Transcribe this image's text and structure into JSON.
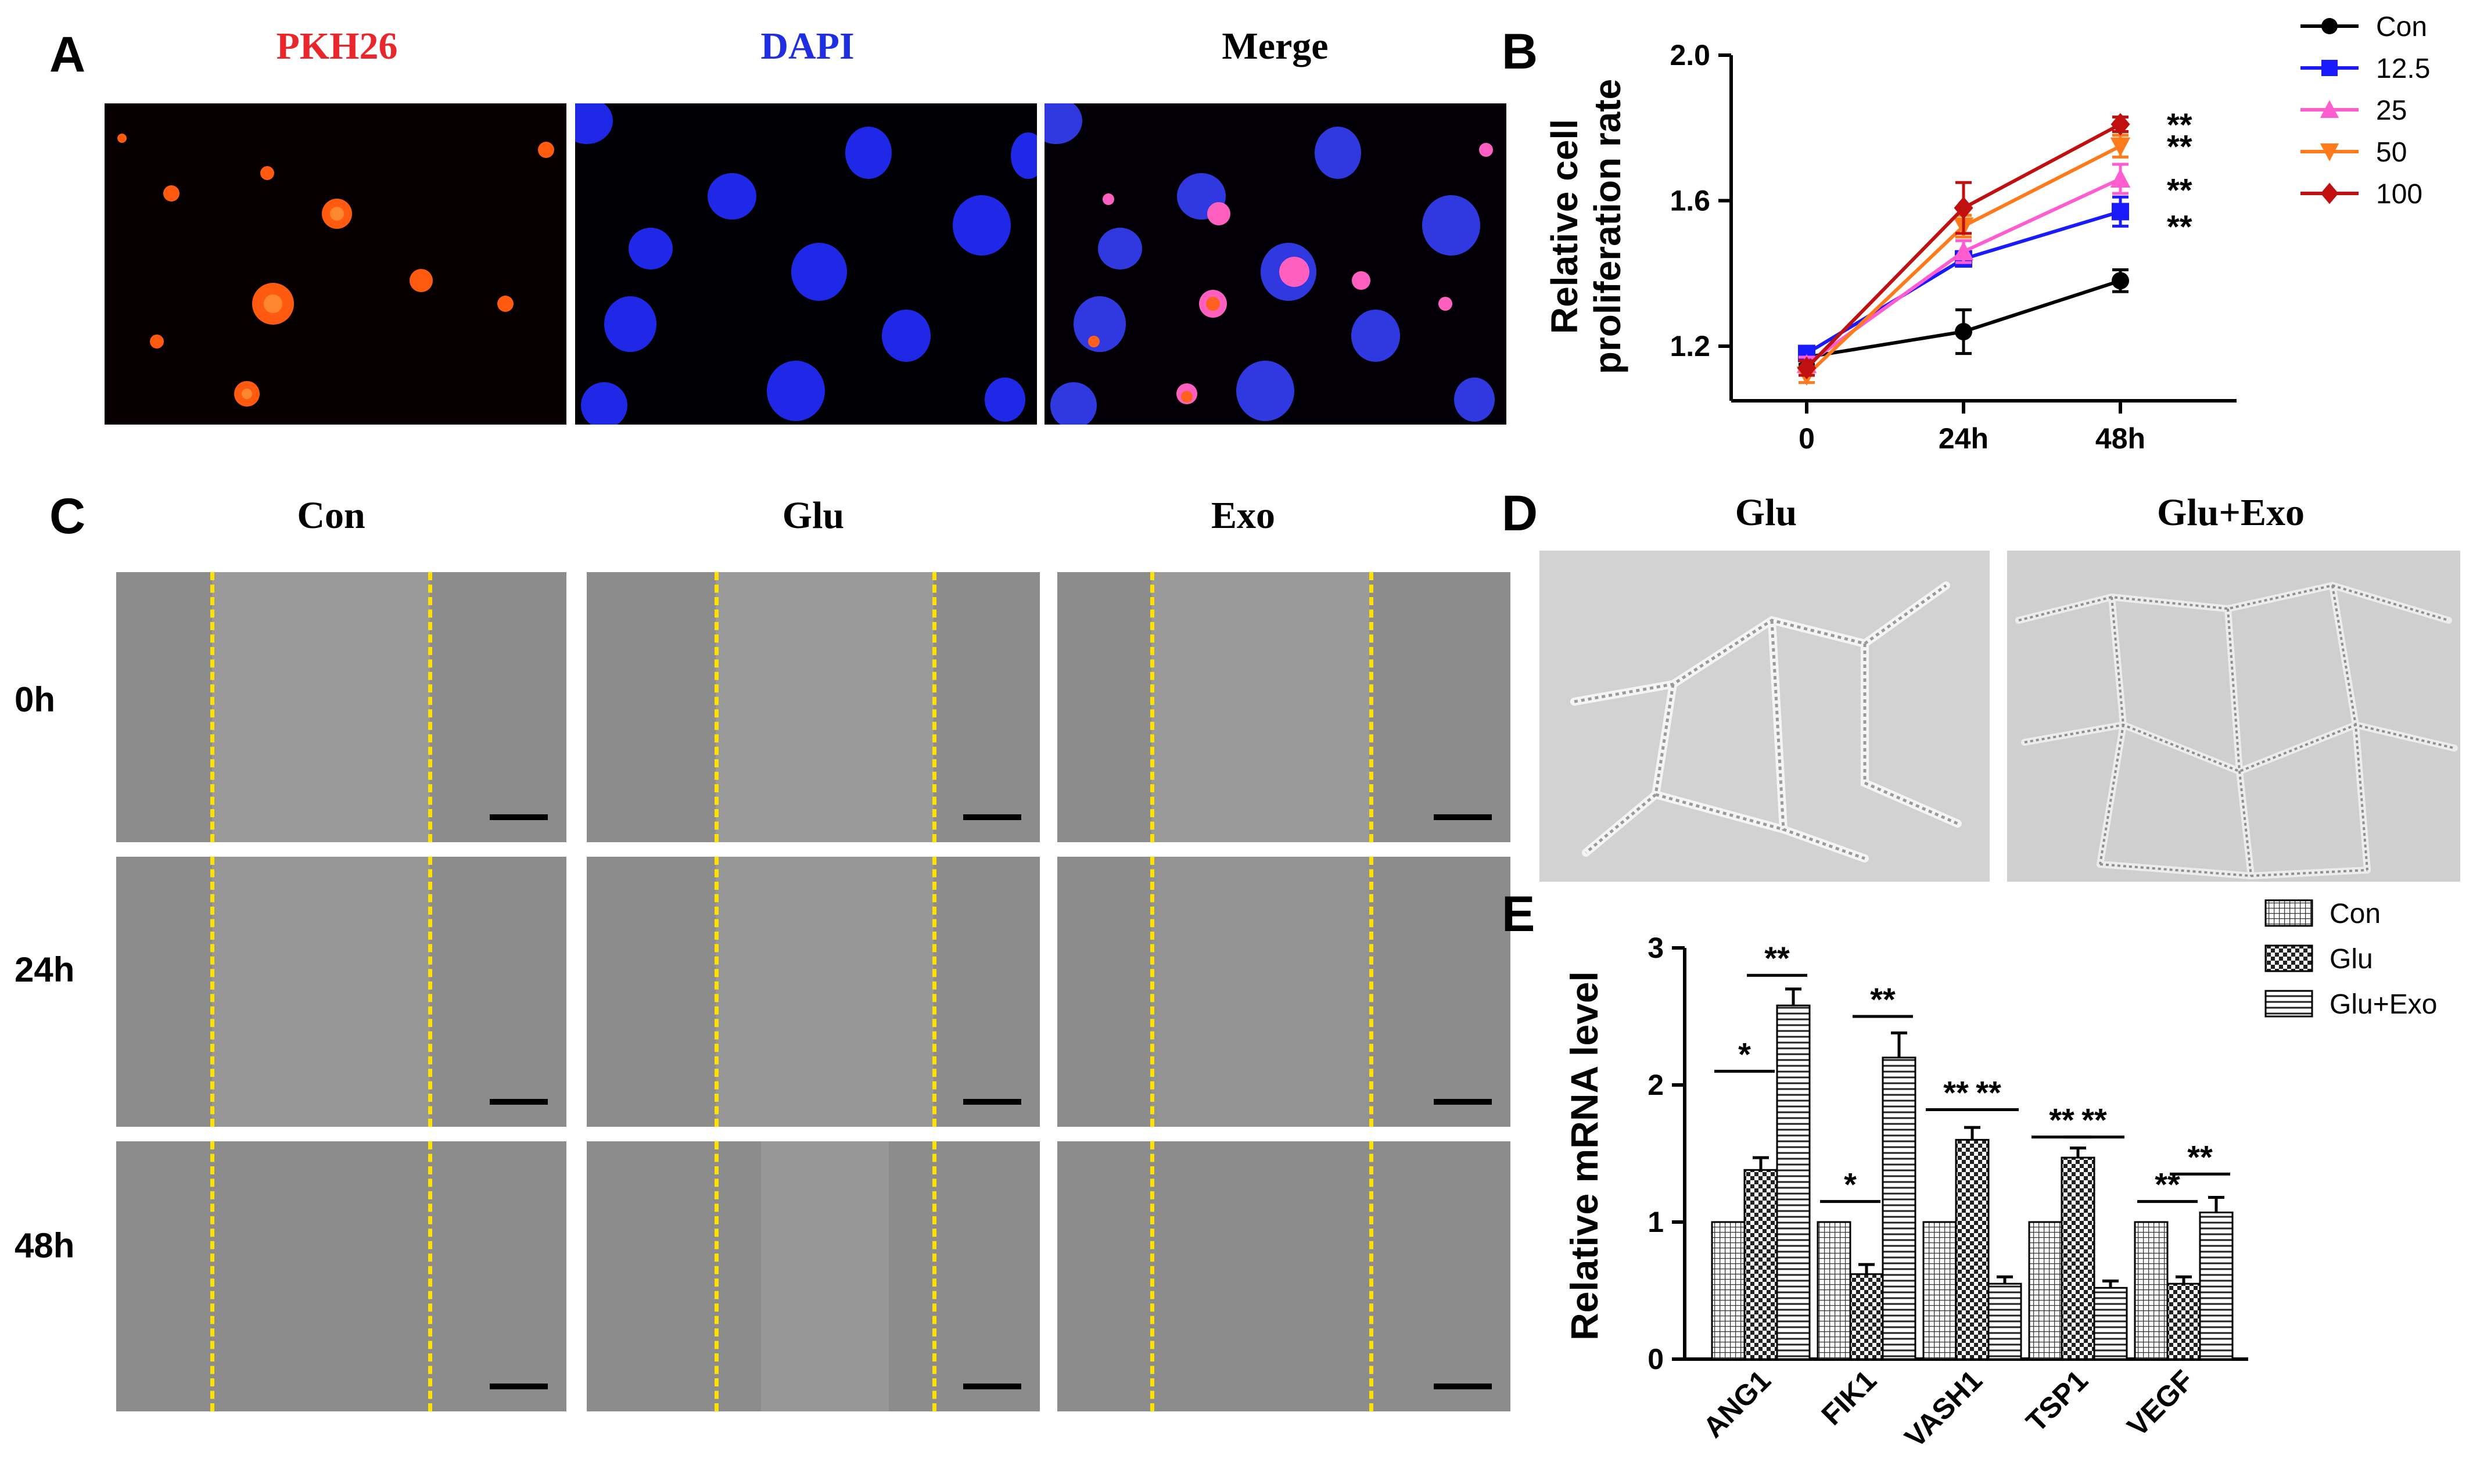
{
  "panel_labels": {
    "a": "A",
    "b": "B",
    "c": "C",
    "d": "D",
    "e": "E"
  },
  "panel_a": {
    "headers": [
      "PKH26",
      "DAPI",
      "Merge"
    ],
    "header_colors": [
      "#e8262b",
      "#1f2ee0",
      "#000000"
    ]
  },
  "panel_c": {
    "columns": [
      "Con",
      "Glu",
      "Exo"
    ],
    "rows": [
      "0h",
      "24h",
      "48h"
    ],
    "scratch_line_color": "#ffe100"
  },
  "panel_d": {
    "columns": [
      "Glu",
      "Glu+Exo"
    ]
  },
  "chart_data": [
    {
      "type": "line",
      "panel": "B",
      "ylabel": "Relative cell proliferation rate",
      "ylabel_lines": [
        "Relative cell",
        "proliferation rate"
      ],
      "x": [
        "0",
        "24h",
        "48h"
      ],
      "ylim": [
        1.05,
        2.0
      ],
      "yticks": [
        "1.2",
        "1.6",
        "2.0"
      ],
      "ytick_values": [
        1.2,
        1.6,
        2.0
      ],
      "legend_position": "top-right",
      "significance": [
        "**",
        "**",
        "**",
        "**"
      ],
      "significance_y": [
        1.81,
        1.75,
        1.63,
        1.53
      ],
      "series": [
        {
          "name": "Con",
          "color": "#000000",
          "marker": "circle",
          "values": [
            1.17,
            1.24,
            1.38
          ],
          "errors": [
            0.02,
            0.06,
            0.03
          ]
        },
        {
          "name": "12.5",
          "color": "#1a1aff",
          "marker": "square",
          "values": [
            1.18,
            1.44,
            1.57
          ],
          "errors": [
            0.02,
            0.02,
            0.04
          ]
        },
        {
          "name": "25",
          "color": "#ff5cd0",
          "marker": "triangle-up",
          "values": [
            1.15,
            1.46,
            1.66
          ],
          "errors": [
            0.02,
            0.03,
            0.04
          ]
        },
        {
          "name": "50",
          "color": "#ff7a1a",
          "marker": "triangle-down",
          "values": [
            1.12,
            1.53,
            1.75
          ],
          "errors": [
            0.02,
            0.03,
            0.03
          ]
        },
        {
          "name": "100",
          "color": "#c01010",
          "marker": "diamond",
          "values": [
            1.14,
            1.58,
            1.81
          ],
          "errors": [
            0.02,
            0.07,
            0.02
          ]
        }
      ]
    },
    {
      "type": "bar",
      "panel": "E",
      "ylabel": "Relative mRNA level",
      "categories": [
        "ANG1",
        "FIK1",
        "VASH1",
        "TSP1",
        "VEGF"
      ],
      "ylim": [
        0,
        3
      ],
      "yticks": [
        "0",
        "1",
        "2",
        "3"
      ],
      "ytick_values": [
        0,
        1,
        2,
        3
      ],
      "legend_position": "top-right",
      "series": [
        {
          "name": "Con",
          "pattern": "grid",
          "values": [
            1.0,
            1.0,
            1.0,
            1.0,
            1.0
          ],
          "errors": [
            0,
            0,
            0,
            0,
            0
          ]
        },
        {
          "name": "Glu",
          "pattern": "checker",
          "values": [
            1.38,
            0.62,
            1.6,
            1.47,
            0.55
          ],
          "errors": [
            0.09,
            0.07,
            0.09,
            0.07,
            0.05
          ]
        },
        {
          "name": "Glu+Exo",
          "pattern": "horizontal",
          "values": [
            2.58,
            2.2,
            0.55,
            0.52,
            1.07
          ],
          "errors": [
            0.12,
            0.18,
            0.05,
            0.05,
            0.11
          ]
        }
      ],
      "significance": [
        {
          "category": "ANG1",
          "from": 0,
          "to": 1,
          "label": "*",
          "y": 2.1
        },
        {
          "category": "ANG1",
          "from": 1,
          "to": 2,
          "label": "**",
          "y": 2.8
        },
        {
          "category": "FIK1",
          "from": 0,
          "to": 1,
          "label": "*",
          "y": 1.15
        },
        {
          "category": "FIK1",
          "from": 1,
          "to": 2,
          "label": "**",
          "y": 2.5
        },
        {
          "category": "VASH1",
          "from": 0,
          "to": 1,
          "label": "**",
          "y": 1.82
        },
        {
          "category": "VASH1",
          "from": 1,
          "to": 2,
          "label": "**",
          "y": 1.82
        },
        {
          "category": "TSP1",
          "from": 0,
          "to": 1,
          "label": "**",
          "y": 1.62
        },
        {
          "category": "TSP1",
          "from": 1,
          "to": 2,
          "label": "**",
          "y": 1.62
        },
        {
          "category": "VEGF",
          "from": 0,
          "to": 1,
          "label": "**",
          "y": 1.15
        },
        {
          "category": "VEGF",
          "from": 1,
          "to": 2,
          "label": "**",
          "y": 1.35
        }
      ]
    }
  ]
}
